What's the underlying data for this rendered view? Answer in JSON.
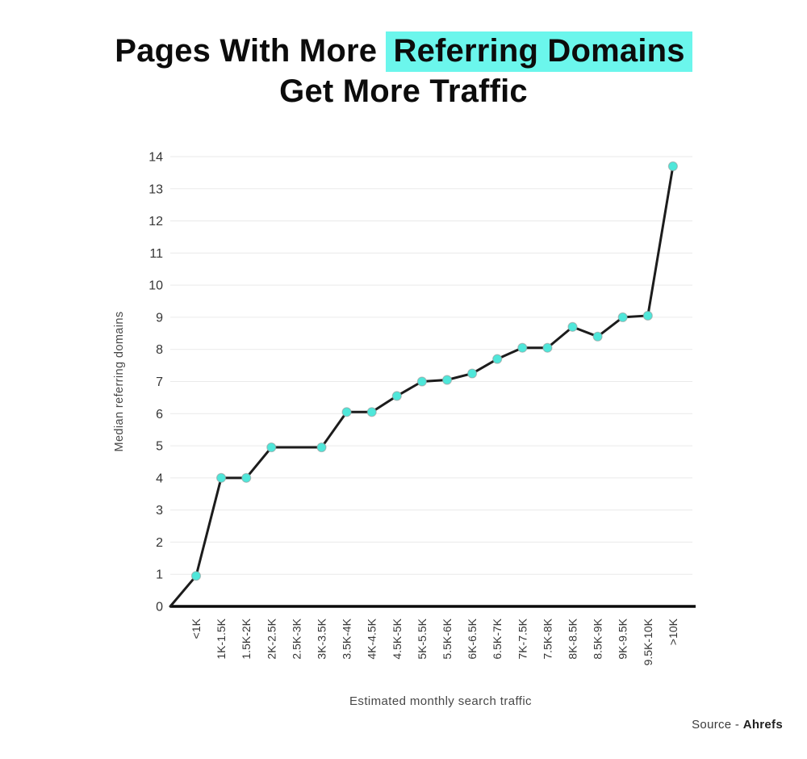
{
  "title": {
    "prefix": "Pages With More ",
    "highlight": "Referring Domains",
    "line2": "Get More Traffic"
  },
  "source": {
    "prefix": "Source - ",
    "name": "Ahrefs"
  },
  "colors": {
    "highlight_bg": "#6BF6EC",
    "marker": "#4FE7DA",
    "marker_outline": "#979797",
    "line": "#1c1c1c",
    "axis": "#0a0a0a",
    "grid": "#eaeaea",
    "tick_text": "#363636",
    "axis_title_text": "#484848"
  },
  "chart_data": {
    "type": "line",
    "title": "Pages With More Referring Domains Get More Traffic",
    "categories": [
      "<1K",
      "1K-1.5K",
      "1.5K-2K",
      "2K-2.5K",
      "2.5K-3K",
      "3K-3.5K",
      "3.5K-4K",
      "4K-4.5K",
      "4.5K-5K",
      "5K-5.5K",
      "5.5K-6K",
      "6K-6.5K",
      "6.5K-7K",
      "7K-7.5K",
      "7.5K-8K",
      "8K-8.5K",
      "8.5K-9K",
      "9K-9.5K",
      "9.5K-10K",
      ">10K"
    ],
    "values": [
      0.95,
      4,
      4,
      4.95,
      4.95,
      4.95,
      6.05,
      6.05,
      6.55,
      7,
      7.05,
      7.25,
      7.7,
      8.05,
      8.05,
      8.7,
      8.4,
      9,
      9.05,
      13.7
    ],
    "xlabel": "Estimated monthly search traffic",
    "ylabel": "Median referring domains",
    "ylim": [
      0,
      14
    ],
    "ytick_step": 1,
    "grid": true,
    "legend": false,
    "line_starts_at_origin": true,
    "points_without_marker": [
      "2.5K-3K"
    ]
  }
}
